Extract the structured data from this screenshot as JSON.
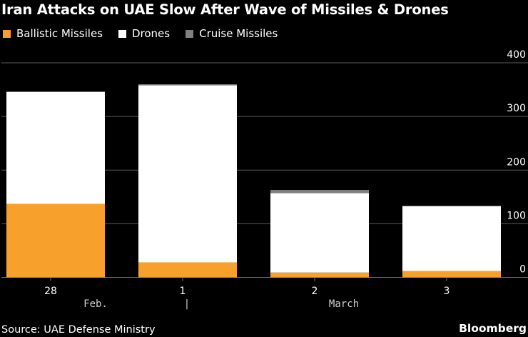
{
  "title": "Iran Attacks on UAE Slow After Wave of Missiles & Drones",
  "legend": [
    {
      "label": "Ballistic Missiles",
      "color": "#f7a12c"
    },
    {
      "label": "Drones",
      "color": "#ffffff"
    },
    {
      "label": "Cruise Missiles",
      "color": "#808080"
    }
  ],
  "source": "Source: UAE Defense Ministry",
  "brand": "Bloomberg",
  "chart_data": {
    "type": "bar",
    "stacked": true,
    "title": "Iran Attacks on UAE Slow After Wave of Missiles & Drones",
    "categories": [
      "28",
      "1",
      "2",
      "3"
    ],
    "month_labels": [
      "Feb.",
      "|",
      "March"
    ],
    "series": [
      {
        "name": "Ballistic Missiles",
        "color": "#f7a12c",
        "values": [
          137,
          28,
          9,
          12
        ]
      },
      {
        "name": "Drones",
        "color": "#ffffff",
        "values": [
          209,
          330,
          148,
          121
        ]
      },
      {
        "name": "Cruise Missiles",
        "color": "#808080",
        "values": [
          0,
          2,
          6,
          0
        ]
      }
    ],
    "ylim": [
      0,
      400
    ],
    "yticks": [
      0,
      100,
      200,
      300,
      400
    ],
    "grid": true,
    "xlabel": "",
    "ylabel": ""
  }
}
